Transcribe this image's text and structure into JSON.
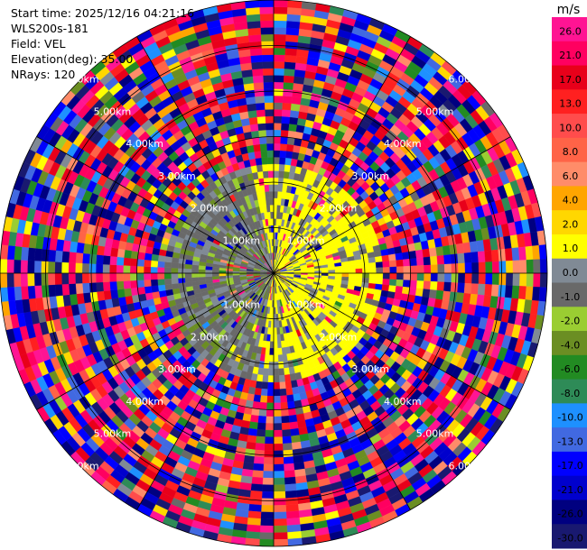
{
  "header": {
    "start_time": "Start time: 2025/12/16 04:21:16",
    "instrument": "WLS200s-181",
    "field": "Field: VEL",
    "elevation": "Elevation(deg): 35.00",
    "nrays": "NRays: 120"
  },
  "chart_data": {
    "type": "heatmap",
    "subtype": "polar-ppi",
    "field": "VEL",
    "units": "m/s",
    "n_rays": 120,
    "elevation_deg": 35.0,
    "max_range_km": 6.0,
    "range_rings_km": [
      1,
      2,
      3,
      4,
      5,
      6
    ],
    "ring_labels": [
      "1.00km",
      "2.00km",
      "3.00km",
      "4.00km",
      "5.00km",
      "6.00km"
    ],
    "colorbar": {
      "unit_label": "m/s",
      "ticks": [
        "26.0",
        "21.0",
        "17.0",
        "13.0",
        "10.0",
        "8.0",
        "6.0",
        "4.0",
        "2.0",
        "1.0",
        "0.0",
        "-1.0",
        "-2.0",
        "-4.0",
        "-6.0",
        "-8.0",
        "-10.0",
        "-13.0",
        "-17.0",
        "-21.0",
        "-26.0",
        "-30.0"
      ],
      "bins": [
        {
          "lo": 26,
          "hi": 30,
          "color": "#ff1493"
        },
        {
          "lo": 21,
          "hi": 26,
          "color": "#ff0060"
        },
        {
          "lo": 17,
          "hi": 21,
          "color": "#e8001a"
        },
        {
          "lo": 13,
          "hi": 17,
          "color": "#ff2020"
        },
        {
          "lo": 10,
          "hi": 13,
          "color": "#ff4c4c"
        },
        {
          "lo": 8,
          "hi": 10,
          "color": "#ff6347"
        },
        {
          "lo": 6,
          "hi": 8,
          "color": "#ff8c69"
        },
        {
          "lo": 4,
          "hi": 6,
          "color": "#ffa500"
        },
        {
          "lo": 2,
          "hi": 4,
          "color": "#ffd700"
        },
        {
          "lo": 1,
          "hi": 2,
          "color": "#ffff00"
        },
        {
          "lo": 0,
          "hi": 1,
          "color": "#808a95"
        },
        {
          "lo": -1,
          "hi": 0,
          "color": "#696969"
        },
        {
          "lo": -2,
          "hi": -1,
          "color": "#9acd32"
        },
        {
          "lo": -4,
          "hi": -2,
          "color": "#6b8e23"
        },
        {
          "lo": -6,
          "hi": -4,
          "color": "#228b22"
        },
        {
          "lo": -8,
          "hi": -6,
          "color": "#2e8b57"
        },
        {
          "lo": -10,
          "hi": -8,
          "color": "#1e90ff"
        },
        {
          "lo": -13,
          "hi": -10,
          "color": "#4169e1"
        },
        {
          "lo": -17,
          "hi": -13,
          "color": "#0000ff"
        },
        {
          "lo": -21,
          "hi": -17,
          "color": "#0000cd"
        },
        {
          "lo": -26,
          "hi": -21,
          "color": "#000080"
        },
        {
          "lo": -30,
          "hi": -26,
          "color": "#191970"
        }
      ]
    },
    "grid": true,
    "background_noise": "random velocity values beyond ~2.4 km; near-field dominated by yellow (+1..2 m/s) to the east and grey/green (-1..0 m/s) to the west"
  }
}
